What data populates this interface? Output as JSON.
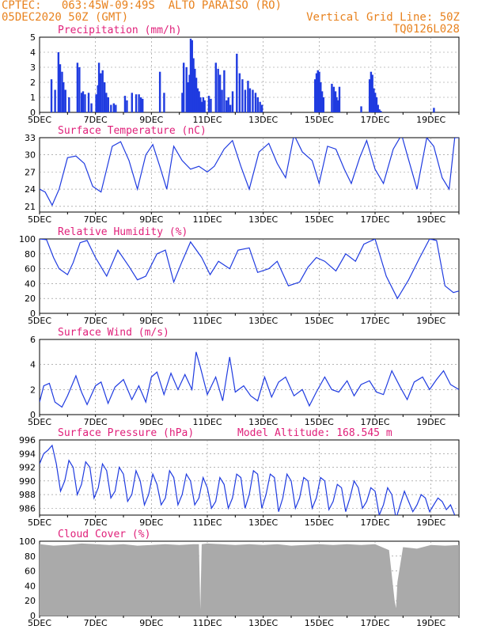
{
  "header": {
    "line1_left": "CPTEC:   063:45W-09:49S  ALTO PARAISO (RO)",
    "line2_left": "05DEC2020 50Z (GMT)",
    "line1_right": "Vertical Grid Line: 50Z",
    "line2_right": "TQ0126L028",
    "color": "#e8821e"
  },
  "colors": {
    "title": "#e0207a",
    "line": "#1f3be0",
    "bar": "#1f3be0",
    "cloud": "#aaaaaa",
    "grid": "#888888",
    "frame": "#000000"
  },
  "x_axis": {
    "days": [
      5,
      20
    ],
    "tick_labels": [
      "5DEC",
      "7DEC",
      "9DEC",
      "11DEC",
      "13DEC",
      "15DEC",
      "17DEC",
      "19DEC"
    ],
    "tick_days": [
      5,
      7,
      9,
      11,
      13,
      15,
      17,
      19
    ]
  },
  "chart_data": [
    {
      "type": "bar",
      "title": "Precipitation (mm/h)",
      "ylim": [
        0,
        5
      ],
      "yticks": [
        0,
        1,
        2,
        3,
        4,
        5
      ],
      "x": [
        5.42,
        5.55,
        5.67,
        5.73,
        5.8,
        5.85,
        5.92,
        6.05,
        6.35,
        6.42,
        6.5,
        6.55,
        6.62,
        6.75,
        6.85,
        7.02,
        7.08,
        7.12,
        7.18,
        7.25,
        7.32,
        7.38,
        7.45,
        7.55,
        7.65,
        7.72,
        8.05,
        8.12,
        8.3,
        8.45,
        8.55,
        8.62,
        8.68,
        9.3,
        9.45,
        10.1,
        10.15,
        10.25,
        10.3,
        10.36,
        10.4,
        10.45,
        10.5,
        10.55,
        10.6,
        10.65,
        10.7,
        10.75,
        10.8,
        10.85,
        10.9,
        11.05,
        11.12,
        11.3,
        11.38,
        11.45,
        11.52,
        11.6,
        11.68,
        11.75,
        11.82,
        11.9,
        12.05,
        12.15,
        12.25,
        12.35,
        12.45,
        12.52,
        12.62,
        12.72,
        12.8,
        12.88,
        12.95,
        14.85,
        14.9,
        14.95,
        15.0,
        15.05,
        15.1,
        15.15,
        15.45,
        15.52,
        15.58,
        15.62,
        15.68,
        15.72,
        16.5,
        16.8,
        16.85,
        16.9,
        16.95,
        17.0,
        17.05,
        17.1,
        17.15,
        17.2,
        19.1
      ],
      "values": [
        2.2,
        1.5,
        4.0,
        3.2,
        2.7,
        2.0,
        1.5,
        1.0,
        3.3,
        3.0,
        1.3,
        1.4,
        1.2,
        1.3,
        0.6,
        1.2,
        1.8,
        3.3,
        2.6,
        2.8,
        2.0,
        1.3,
        1.0,
        0.5,
        0.6,
        0.5,
        1.1,
        0.8,
        1.3,
        1.2,
        1.2,
        1.0,
        0.9,
        2.7,
        1.3,
        1.3,
        3.3,
        3.0,
        2.0,
        2.5,
        4.9,
        4.8,
        3.6,
        2.9,
        2.3,
        1.6,
        1.4,
        1.0,
        0.7,
        1.0,
        0.8,
        1.1,
        0.9,
        3.3,
        2.9,
        2.5,
        1.5,
        2.8,
        0.8,
        1.0,
        0.5,
        1.4,
        3.9,
        2.6,
        2.2,
        1.5,
        2.1,
        1.6,
        1.5,
        1.3,
        1.0,
        0.7,
        0.5,
        2.2,
        2.6,
        2.8,
        2.7,
        2.0,
        1.4,
        1.0,
        1.9,
        1.7,
        1.4,
        1.0,
        0.8,
        1.7,
        0.4,
        2.2,
        2.7,
        2.5,
        1.6,
        1.3,
        1.0,
        0.5,
        0.2,
        0.1,
        0.3
      ]
    },
    {
      "type": "line",
      "title": "Surface Temperature (nC)",
      "ylim": [
        20,
        33
      ],
      "yticks": [
        21,
        24,
        27,
        30,
        33
      ],
      "x": [
        5.0,
        5.2,
        5.45,
        5.7,
        6.0,
        6.3,
        6.6,
        6.9,
        7.2,
        7.6,
        7.9,
        8.2,
        8.5,
        8.8,
        9.05,
        9.3,
        9.55,
        9.8,
        10.1,
        10.4,
        10.7,
        11.0,
        11.25,
        11.6,
        11.9,
        12.2,
        12.5,
        12.85,
        13.2,
        13.5,
        13.8,
        14.1,
        14.4,
        14.75,
        15.0,
        15.3,
        15.6,
        15.9,
        16.15,
        16.45,
        16.7,
        17.0,
        17.3,
        17.65,
        17.95,
        18.15,
        18.5,
        18.85,
        19.1,
        19.4,
        19.65,
        19.85,
        20.0
      ],
      "values": [
        24,
        23.5,
        21.2,
        24,
        29.5,
        29.8,
        28.5,
        24.5,
        23.5,
        31.5,
        32.3,
        29,
        24,
        30,
        31.8,
        28,
        24,
        31.5,
        29,
        27.5,
        28,
        27,
        28,
        31,
        32.5,
        28,
        24,
        30.5,
        32,
        28.5,
        26,
        33.5,
        30.5,
        29,
        25,
        31.5,
        31,
        27.5,
        25,
        29.5,
        32.5,
        27.5,
        25,
        31,
        33.5,
        30,
        24,
        33,
        31.5,
        26,
        24,
        33,
        33
      ]
    },
    {
      "type": "line",
      "title": "Relative Humidity (%)",
      "ylim": [
        0,
        100
      ],
      "yticks": [
        0,
        20,
        40,
        60,
        80,
        100
      ],
      "x": [
        5.0,
        5.25,
        5.5,
        5.7,
        6.0,
        6.2,
        6.45,
        6.7,
        7.0,
        7.4,
        7.8,
        8.2,
        8.5,
        8.8,
        9.2,
        9.5,
        9.8,
        10.1,
        10.4,
        10.8,
        11.1,
        11.4,
        11.8,
        12.1,
        12.5,
        12.8,
        13.2,
        13.5,
        13.9,
        14.3,
        14.6,
        14.9,
        15.2,
        15.6,
        15.95,
        16.3,
        16.6,
        17.0,
        17.4,
        17.8,
        18.2,
        18.6,
        18.95,
        19.2,
        19.5,
        19.8,
        20.0
      ],
      "values": [
        100,
        99,
        75,
        60,
        52,
        68,
        95,
        98,
        75,
        50,
        85,
        63,
        45,
        50,
        80,
        85,
        42,
        70,
        96,
        75,
        52,
        70,
        60,
        85,
        88,
        55,
        60,
        70,
        37,
        42,
        62,
        75,
        70,
        57,
        80,
        70,
        93,
        100,
        50,
        20,
        45,
        75,
        100,
        98,
        37,
        28,
        30
      ]
    },
    {
      "type": "line",
      "title": "Surface Wind (m/s)",
      "ylim": [
        0,
        6
      ],
      "yticks": [
        0,
        2,
        4,
        6
      ],
      "x": [
        5.0,
        5.15,
        5.35,
        5.55,
        5.8,
        6.0,
        6.3,
        6.5,
        6.7,
        7.0,
        7.2,
        7.45,
        7.7,
        8.0,
        8.3,
        8.55,
        8.8,
        9.0,
        9.2,
        9.45,
        9.7,
        9.95,
        10.2,
        10.45,
        10.6,
        10.75,
        11.0,
        11.3,
        11.55,
        11.8,
        12.0,
        12.3,
        12.55,
        12.8,
        13.05,
        13.3,
        13.55,
        13.8,
        14.1,
        14.4,
        14.65,
        14.9,
        15.2,
        15.45,
        15.7,
        16.0,
        16.25,
        16.5,
        16.8,
        17.05,
        17.3,
        17.6,
        17.9,
        18.15,
        18.4,
        18.7,
        18.95,
        19.2,
        19.45,
        19.7,
        20.0
      ],
      "values": [
        1.0,
        2.3,
        2.5,
        1.0,
        0.6,
        1.5,
        3.1,
        1.8,
        0.8,
        2.3,
        2.6,
        0.9,
        2.2,
        2.8,
        1.2,
        2.3,
        1.0,
        3.0,
        3.4,
        1.6,
        3.3,
        2.0,
        3.2,
        2.0,
        5.0,
        3.8,
        1.6,
        3.0,
        1.1,
        4.6,
        1.8,
        2.3,
        1.5,
        1.1,
        3.0,
        1.4,
        2.6,
        3.0,
        1.5,
        2.0,
        0.7,
        1.8,
        3.0,
        2.0,
        1.8,
        2.7,
        1.5,
        2.4,
        2.7,
        1.8,
        1.6,
        3.5,
        2.2,
        1.2,
        2.6,
        3.0,
        2.0,
        2.8,
        3.5,
        2.4,
        2.0
      ]
    },
    {
      "type": "line",
      "title": "Surface Pressure (hPa)",
      "annotation": "Model Altitude: 168.545  m",
      "ylim": [
        985,
        996
      ],
      "yticks": [
        986,
        988,
        990,
        992,
        994,
        996
      ],
      "x": [
        5.0,
        5.15,
        5.3,
        5.45,
        5.6,
        5.75,
        5.9,
        6.05,
        6.2,
        6.35,
        6.5,
        6.65,
        6.8,
        6.95,
        7.1,
        7.25,
        7.4,
        7.55,
        7.7,
        7.85,
        8.0,
        8.15,
        8.3,
        8.45,
        8.6,
        8.75,
        8.9,
        9.05,
        9.2,
        9.35,
        9.5,
        9.65,
        9.8,
        9.95,
        10.1,
        10.25,
        10.4,
        10.55,
        10.7,
        10.85,
        11.0,
        11.15,
        11.3,
        11.45,
        11.6,
        11.75,
        11.9,
        12.05,
        12.2,
        12.35,
        12.5,
        12.65,
        12.8,
        12.95,
        13.1,
        13.25,
        13.4,
        13.55,
        13.7,
        13.85,
        14.0,
        14.15,
        14.3,
        14.45,
        14.6,
        14.75,
        14.9,
        15.05,
        15.2,
        15.35,
        15.5,
        15.65,
        15.8,
        15.95,
        16.1,
        16.25,
        16.4,
        16.55,
        16.7,
        16.85,
        17.0,
        17.15,
        17.3,
        17.45,
        17.6,
        17.75,
        17.9,
        18.05,
        18.2,
        18.35,
        18.5,
        18.65,
        18.8,
        18.95,
        19.1,
        19.25,
        19.4,
        19.55,
        19.7,
        19.85
      ],
      "values": [
        992.5,
        994.0,
        994.5,
        995.2,
        992.5,
        988.5,
        990.0,
        993.0,
        992.0,
        988.0,
        989.5,
        992.8,
        992.0,
        987.5,
        989.0,
        992.5,
        991.5,
        987.5,
        988.5,
        992.0,
        991.0,
        987.0,
        988.0,
        991.5,
        990.0,
        986.5,
        988.0,
        991.0,
        989.5,
        986.5,
        987.5,
        991.5,
        990.5,
        986.5,
        988.0,
        991.0,
        990.0,
        986.5,
        987.5,
        990.5,
        989.0,
        986.0,
        987.0,
        990.5,
        989.5,
        986.0,
        987.5,
        991.0,
        990.5,
        986.0,
        988.0,
        991.5,
        991.0,
        986.0,
        988.0,
        991.0,
        990.5,
        985.5,
        987.5,
        991.0,
        990.0,
        986.0,
        987.5,
        990.5,
        990.0,
        986.0,
        987.5,
        990.5,
        990.0,
        985.8,
        987.0,
        989.5,
        989.0,
        985.5,
        987.5,
        990.0,
        989.0,
        986.0,
        987.0,
        989.0,
        988.5,
        985.0,
        986.5,
        989.0,
        988.0,
        984.5,
        986.5,
        988.5,
        987.0,
        985.5,
        986.5,
        988.0,
        987.5,
        985.5,
        986.5,
        987.5,
        987.0,
        985.8,
        986.5,
        985.0
      ]
    },
    {
      "type": "area",
      "title": "Cloud Cover (%)",
      "ylim": [
        0,
        100
      ],
      "yticks": [
        0,
        20,
        40,
        60,
        80,
        100
      ],
      "x": [
        5.0,
        5.5,
        6.0,
        6.5,
        7.0,
        7.5,
        8.0,
        8.5,
        9.0,
        9.5,
        10.0,
        10.5,
        10.7,
        10.75,
        10.8,
        11.0,
        11.5,
        12.0,
        12.5,
        13.0,
        13.5,
        14.0,
        14.5,
        15.0,
        15.5,
        16.0,
        16.5,
        17.0,
        17.5,
        17.7,
        17.75,
        17.8,
        18.0,
        18.5,
        19.0,
        19.5,
        20.0
      ],
      "values": [
        96,
        94,
        95,
        97,
        96,
        95,
        96,
        94,
        95,
        96,
        95,
        96,
        96,
        8,
        96,
        97,
        96,
        95,
        96,
        95,
        96,
        94,
        95,
        96,
        95,
        96,
        95,
        96,
        88,
        20,
        10,
        45,
        92,
        90,
        95,
        94,
        95
      ]
    }
  ]
}
